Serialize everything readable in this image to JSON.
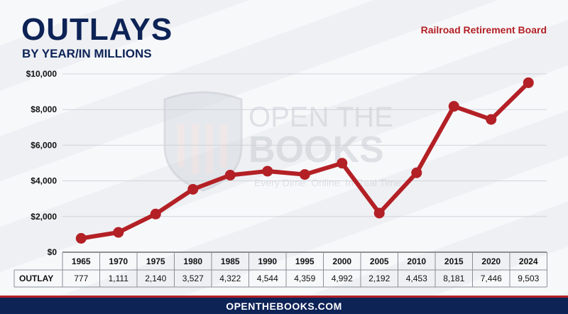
{
  "header": {
    "title": "OUTLAYS",
    "subtitle": "BY YEAR/IN MILLIONS",
    "agency": "Railroad Retirement Board"
  },
  "watermark": {
    "line1": "OPEN THE",
    "line2": "BOOKS",
    "tagline": "Every Dime. Online. In Real Time."
  },
  "footer": {
    "site": "OPENTHEBOOKS.COM"
  },
  "colors": {
    "line": "#b32025",
    "navy": "#0d2356",
    "grid": "#cfd3d9"
  },
  "chart_data": {
    "type": "line",
    "title": "OUTLAYS",
    "subtitle": "BY YEAR/IN MILLIONS",
    "categories": [
      "1965",
      "1970",
      "1975",
      "1980",
      "1985",
      "1990",
      "1995",
      "2000",
      "2005",
      "2010",
      "2015",
      "2020",
      "2024"
    ],
    "values": [
      777,
      1111,
      2140,
      3527,
      4322,
      4544,
      4359,
      4992,
      2192,
      4453,
      8181,
      7446,
      9503
    ],
    "value_labels": [
      "777",
      "1,111",
      "2,140",
      "3,527",
      "4,322",
      "4,544",
      "4,359",
      "4,992",
      "2,192",
      "4,453",
      "8,181",
      "7,446",
      "9,503"
    ],
    "ylim": [
      0,
      10000
    ],
    "yticks": [
      0,
      2000,
      4000,
      6000,
      8000,
      10000
    ],
    "ytick_labels": [
      "$0",
      "$2,000",
      "$4,000",
      "$6,000",
      "$8,000",
      "$10,000"
    ],
    "table_row_label": "OUTLAY",
    "grid": true,
    "legend": "none"
  }
}
